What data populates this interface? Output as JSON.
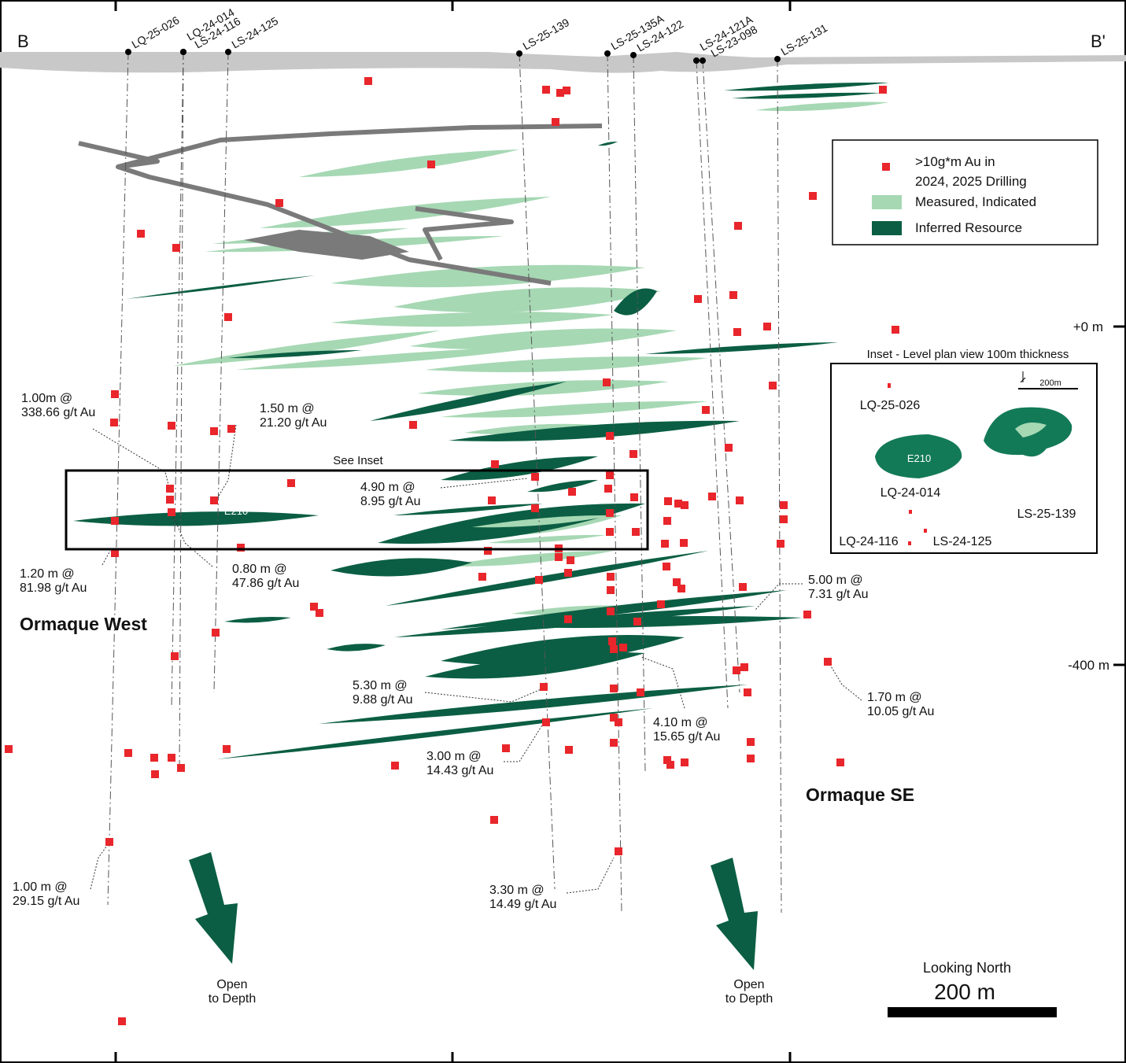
{
  "section": {
    "start": "B",
    "end": "B'"
  },
  "drill_holes": [
    "LQ-25-026",
    "LQ-24-014",
    "LS-24-116",
    "LS-24-125",
    "LS-25-139",
    "LS-25-135A",
    "LS-24-122",
    "LS-24-121A",
    "LS-23-098",
    "LS-25-131"
  ],
  "legend": {
    "items": [
      {
        "lines": [
          ">10g*m Au in",
          "2024, 2025 Drilling"
        ]
      },
      {
        "lines": [
          "Measured, Indicated"
        ]
      },
      {
        "lines": [
          "Inferred Resource"
        ]
      }
    ]
  },
  "depth_labels": [
    "+0 m",
    "-400 m"
  ],
  "inset": {
    "title": "Inset - Level plan view 100m thickness",
    "scale": "200m",
    "zone": "E210",
    "holes": [
      "LQ-25-026",
      "LQ-24-014",
      "LS-25-139",
      "LQ-24-116",
      "LS-24-125"
    ]
  },
  "see_inset": "See Inset",
  "zone_label": "E210",
  "intercepts": [
    {
      "lines": [
        "1.00m @",
        "338.66 g/t Au"
      ]
    },
    {
      "lines": [
        "1.50 m @",
        "21.20 g/t Au"
      ]
    },
    {
      "lines": [
        "4.90 m @",
        "8.95 g/t Au"
      ]
    },
    {
      "lines": [
        "1.20 m @",
        "81.98 g/t Au"
      ]
    },
    {
      "lines": [
        "0.80 m @",
        "47.86 g/t Au"
      ]
    },
    {
      "lines": [
        "5.00 m @",
        "7.31 g/t Au"
      ]
    },
    {
      "lines": [
        "5.30 m @",
        "9.88 g/t Au"
      ]
    },
    {
      "lines": [
        "1.70 m @",
        "10.05 g/t Au"
      ]
    },
    {
      "lines": [
        "4.10 m @",
        "15.65 g/t Au"
      ]
    },
    {
      "lines": [
        "3.00 m @",
        "14.43 g/t Au"
      ]
    },
    {
      "lines": [
        "1.00 m @",
        "29.15 g/t Au"
      ]
    },
    {
      "lines": [
        "3.30 m @",
        "14.49 g/t Au"
      ]
    }
  ],
  "zones": [
    "Ormaque West",
    "Ormaque SE"
  ],
  "depth_arrows": [
    {
      "lines": [
        "Open",
        "to Depth"
      ]
    },
    {
      "lines": [
        "Open",
        "to Depth"
      ]
    }
  ],
  "scale_bar": {
    "direction": "Looking North",
    "length": "200 m"
  }
}
